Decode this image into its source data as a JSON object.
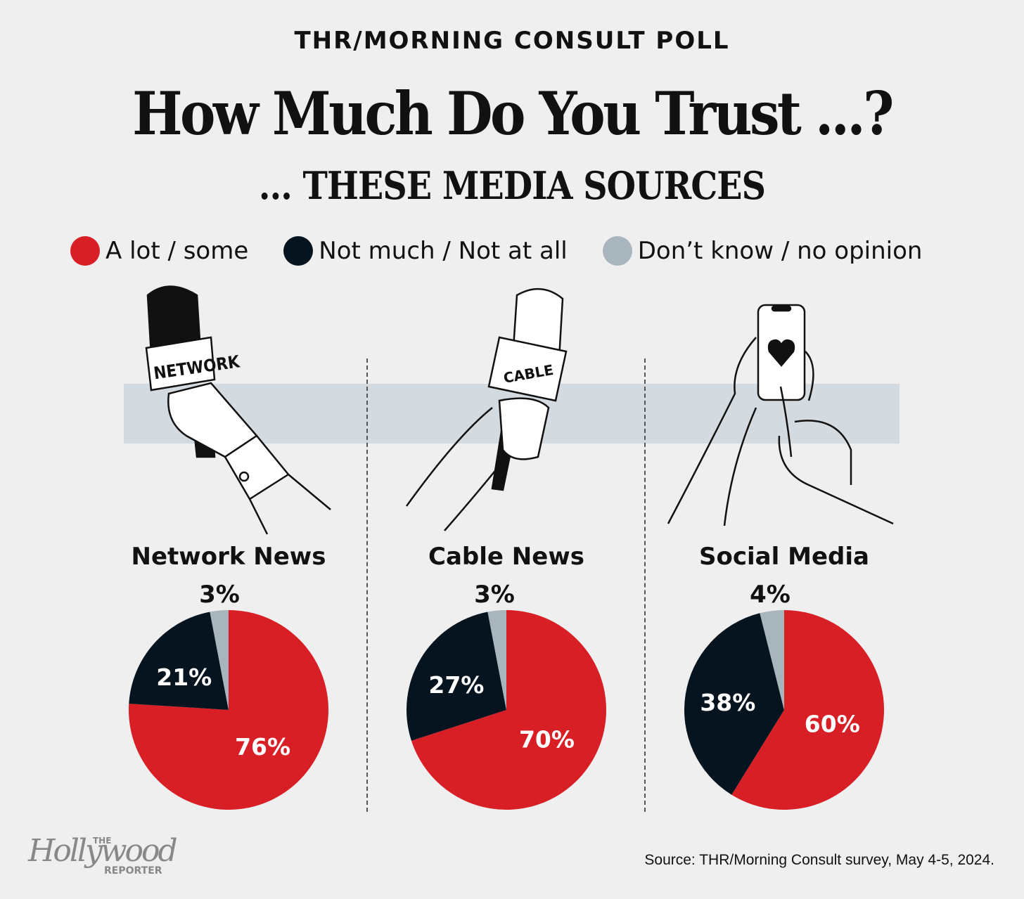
{
  "kicker": "THR/MORNING CONSULT POLL",
  "title": "How Much Do You Trust ...?",
  "subtitle": "... THESE MEDIA SOURCES",
  "colors": {
    "a_lot": "#d81f26",
    "not_much": "#06141f",
    "dont_know": "#a9b5bd",
    "band": "#d3dbe0",
    "background": "#efefef"
  },
  "legend": [
    {
      "label": "A lot / some",
      "color": "#d81f26"
    },
    {
      "label": "Not much / Not at all",
      "color": "#06141f"
    },
    {
      "label": "Don’t know / no opinion",
      "color": "#a9b5bd"
    }
  ],
  "illustrations": {
    "network_mic_text": "NETWORK",
    "cable_mic_text": "CABLE"
  },
  "chart_data": [
    {
      "type": "pie",
      "title": "Network News",
      "labels": [
        "A lot / some",
        "Not much / Not at all",
        "Don’t know / no opinion"
      ],
      "values": [
        76,
        21,
        3
      ],
      "data_labels": [
        "76%",
        "21%",
        "3%"
      ]
    },
    {
      "type": "pie",
      "title": "Cable News",
      "labels": [
        "A lot / some",
        "Not much / Not at all",
        "Don’t know / no opinion"
      ],
      "values": [
        70,
        27,
        3
      ],
      "data_labels": [
        "70%",
        "27%",
        "3%"
      ]
    },
    {
      "type": "pie",
      "title": "Social Media",
      "labels": [
        "A lot / some",
        "Not much / Not at all",
        "Don’t know / no opinion"
      ],
      "values": [
        60,
        38,
        4
      ],
      "data_labels": [
        "60%",
        "38%",
        "4%"
      ]
    }
  ],
  "source": "Source: THR/Morning Consult survey, May 4-5, 2024.",
  "logo": {
    "the": "THE",
    "name": "Hollywood",
    "reporter": "REPORTER"
  }
}
